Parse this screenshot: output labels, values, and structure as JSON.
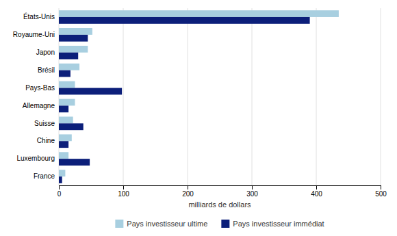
{
  "chart_data": {
    "type": "bar",
    "orientation": "horizontal",
    "categories": [
      "France",
      "Luxembourg",
      "Chine",
      "Suisse",
      "Allemagne",
      "Pays-Bas",
      "Brésil",
      "Japon",
      "Royaume-Uni",
      "États-Unis"
    ],
    "series": [
      {
        "name": "Pays investisseur ultime",
        "color": "#a8cfe0",
        "values": [
          10,
          15,
          20,
          22,
          25,
          25,
          32,
          45,
          52,
          435
        ]
      },
      {
        "name": "Pays investisseur immédiat",
        "color": "#0c1f7a",
        "values": [
          5,
          48,
          15,
          38,
          15,
          98,
          18,
          30,
          45,
          390
        ]
      }
    ],
    "x_label": "milliards de dollars",
    "xlim": [
      0,
      500
    ],
    "xticks": [
      0,
      100,
      200,
      300,
      400,
      500
    ],
    "grid": true,
    "legend": "bottom"
  }
}
